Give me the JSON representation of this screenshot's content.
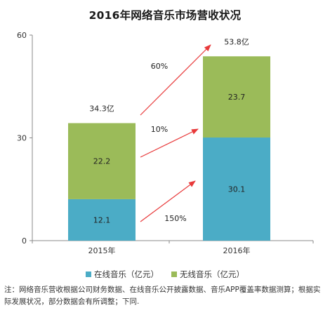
{
  "chart_data": {
    "type": "bar",
    "stacked": true,
    "title": "2016年网络音乐市场营收状况",
    "categories": [
      "2015年",
      "2016年"
    ],
    "series": [
      {
        "name": "在线音乐（亿元）",
        "values": [
          12.1,
          30.1
        ],
        "color": "#4BACC6",
        "labels": [
          "12.1",
          "30.1"
        ]
      },
      {
        "name": "无线音乐（亿元）",
        "values": [
          22.2,
          23.7
        ],
        "color": "#9BBB59",
        "labels": [
          "22.2",
          "23.7"
        ]
      }
    ],
    "totals": [
      {
        "category": "2015年",
        "value": 34.3,
        "label": "34.3亿"
      },
      {
        "category": "2016年",
        "value": 53.8,
        "label": "53.8亿"
      }
    ],
    "growth_annotations": [
      {
        "target": "total",
        "label": "60%"
      },
      {
        "target": "无线音乐",
        "label": "10%"
      },
      {
        "target": "在线音乐",
        "label": "150%"
      }
    ],
    "ylim": [
      0,
      60
    ],
    "yticks": [
      "0",
      "30",
      "60"
    ],
    "grid": false,
    "legend_placement": "bottom",
    "arrow_color": "#E8393A",
    "axis_color": "#888888"
  },
  "note": "注：网络音乐营收根据公司财务数据、在线音乐公开披露数据、音乐APP覆盖率数据测算；根据实际发展状况，部分数据会有所调整；下同."
}
